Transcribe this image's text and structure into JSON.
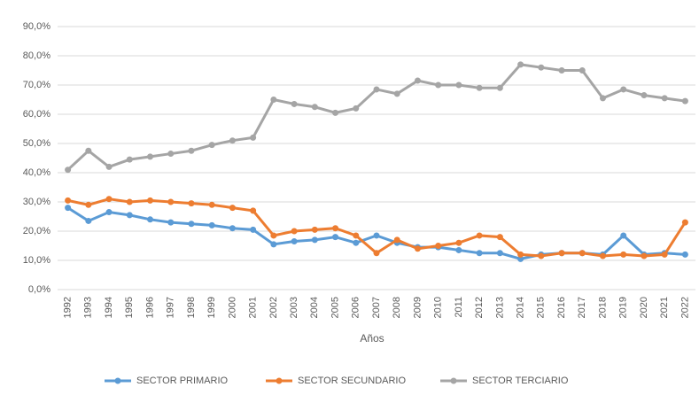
{
  "chart_data": {
    "type": "line",
    "x_label": "Años",
    "categories": [
      "1992",
      "1993",
      "1994",
      "1995",
      "1996",
      "1997",
      "1998",
      "1999",
      "2000",
      "2001",
      "2002",
      "2003",
      "2004",
      "2005",
      "2006",
      "2007",
      "2008",
      "2009",
      "2010",
      "2011",
      "2012",
      "2013",
      "2014",
      "2015",
      "2016",
      "2017",
      "2018",
      "2019",
      "2020",
      "2021",
      "2022"
    ],
    "series": [
      {
        "name": "SECTOR PRIMARIO",
        "color": "#5b9bd5",
        "values": [
          28,
          23.5,
          26.5,
          25.5,
          24,
          23,
          22.5,
          22,
          21,
          20.5,
          15.5,
          16.5,
          17,
          18,
          16,
          18.5,
          16,
          14.5,
          14.5,
          13.5,
          12.5,
          12.5,
          10.5,
          12,
          12.5,
          12.5,
          12,
          18.5,
          12,
          12.5,
          12
        ]
      },
      {
        "name": "SECTOR SECUNDARIO",
        "color": "#ed7d31",
        "values": [
          30.5,
          29,
          31,
          30,
          30.5,
          30,
          29.5,
          29,
          28,
          27,
          18.5,
          20,
          20.5,
          21,
          18.5,
          12.5,
          17,
          14,
          15,
          16,
          18.5,
          18,
          12,
          11.5,
          12.5,
          12.5,
          11.5,
          12,
          11.5,
          12,
          23
        ]
      },
      {
        "name": "SECTOR TERCIARIO",
        "color": "#a5a5a5",
        "values": [
          41,
          47.5,
          42,
          44.5,
          45.5,
          46.5,
          47.5,
          49.5,
          51,
          52,
          65,
          63.5,
          62.5,
          60.5,
          62,
          68.5,
          67,
          71.5,
          70,
          70,
          69,
          69,
          77,
          76,
          75,
          75,
          65.5,
          68.5,
          66.5,
          65.5,
          64.5
        ]
      }
    ],
    "ylim": [
      0,
      90
    ],
    "yticks": [
      {
        "value": 0,
        "label": "0,0%"
      },
      {
        "value": 10,
        "label": "10,0%"
      },
      {
        "value": 20,
        "label": "20,0%"
      },
      {
        "value": 30,
        "label": "30,0%"
      },
      {
        "value": 40,
        "label": "40,0%"
      },
      {
        "value": 50,
        "label": "50,0%"
      },
      {
        "value": 60,
        "label": "60,0%"
      },
      {
        "value": 70,
        "label": "70,0%"
      },
      {
        "value": 80,
        "label": "80,0%"
      },
      {
        "value": 90,
        "label": "90,0%"
      }
    ],
    "grid": true,
    "legend": "bottom"
  }
}
